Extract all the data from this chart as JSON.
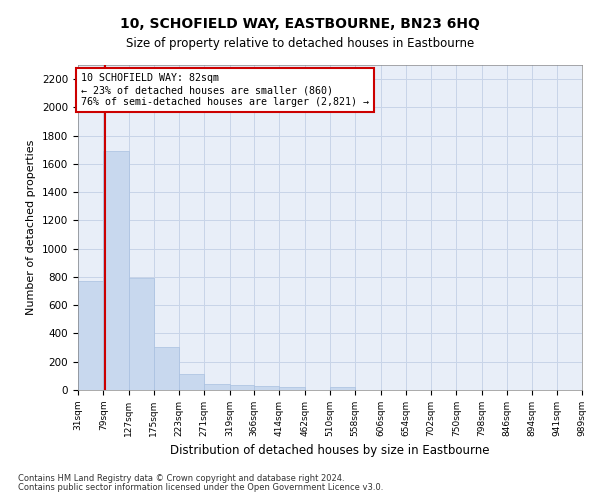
{
  "title": "10, SCHOFIELD WAY, EASTBOURNE, BN23 6HQ",
  "subtitle": "Size of property relative to detached houses in Eastbourne",
  "xlabel": "Distribution of detached houses by size in Eastbourne",
  "ylabel": "Number of detached properties",
  "bar_color": "#c8d8ee",
  "bar_edgecolor": "#a8c0e0",
  "grid_color": "#c8d4e8",
  "background_color": "#e8eef8",
  "vline_x": 82,
  "vline_color": "#cc0000",
  "annotation_text": "10 SCHOFIELD WAY: 82sqm\n← 23% of detached houses are smaller (860)\n76% of semi-detached houses are larger (2,821) →",
  "annotation_box_facecolor": "#ffffff",
  "annotation_box_edgecolor": "#cc0000",
  "bin_edges": [
    31,
    79,
    127,
    175,
    223,
    271,
    319,
    366,
    414,
    462,
    510,
    558,
    606,
    654,
    702,
    750,
    798,
    846,
    894,
    941,
    989
  ],
  "bar_heights": [
    770,
    1690,
    795,
    305,
    110,
    45,
    32,
    25,
    22,
    0,
    22,
    0,
    0,
    0,
    0,
    0,
    0,
    0,
    0,
    0
  ],
  "ylim": [
    0,
    2300
  ],
  "yticks": [
    0,
    200,
    400,
    600,
    800,
    1000,
    1200,
    1400,
    1600,
    1800,
    2000,
    2200
  ],
  "footnote1": "Contains HM Land Registry data © Crown copyright and database right 2024.",
  "footnote2": "Contains public sector information licensed under the Open Government Licence v3.0."
}
